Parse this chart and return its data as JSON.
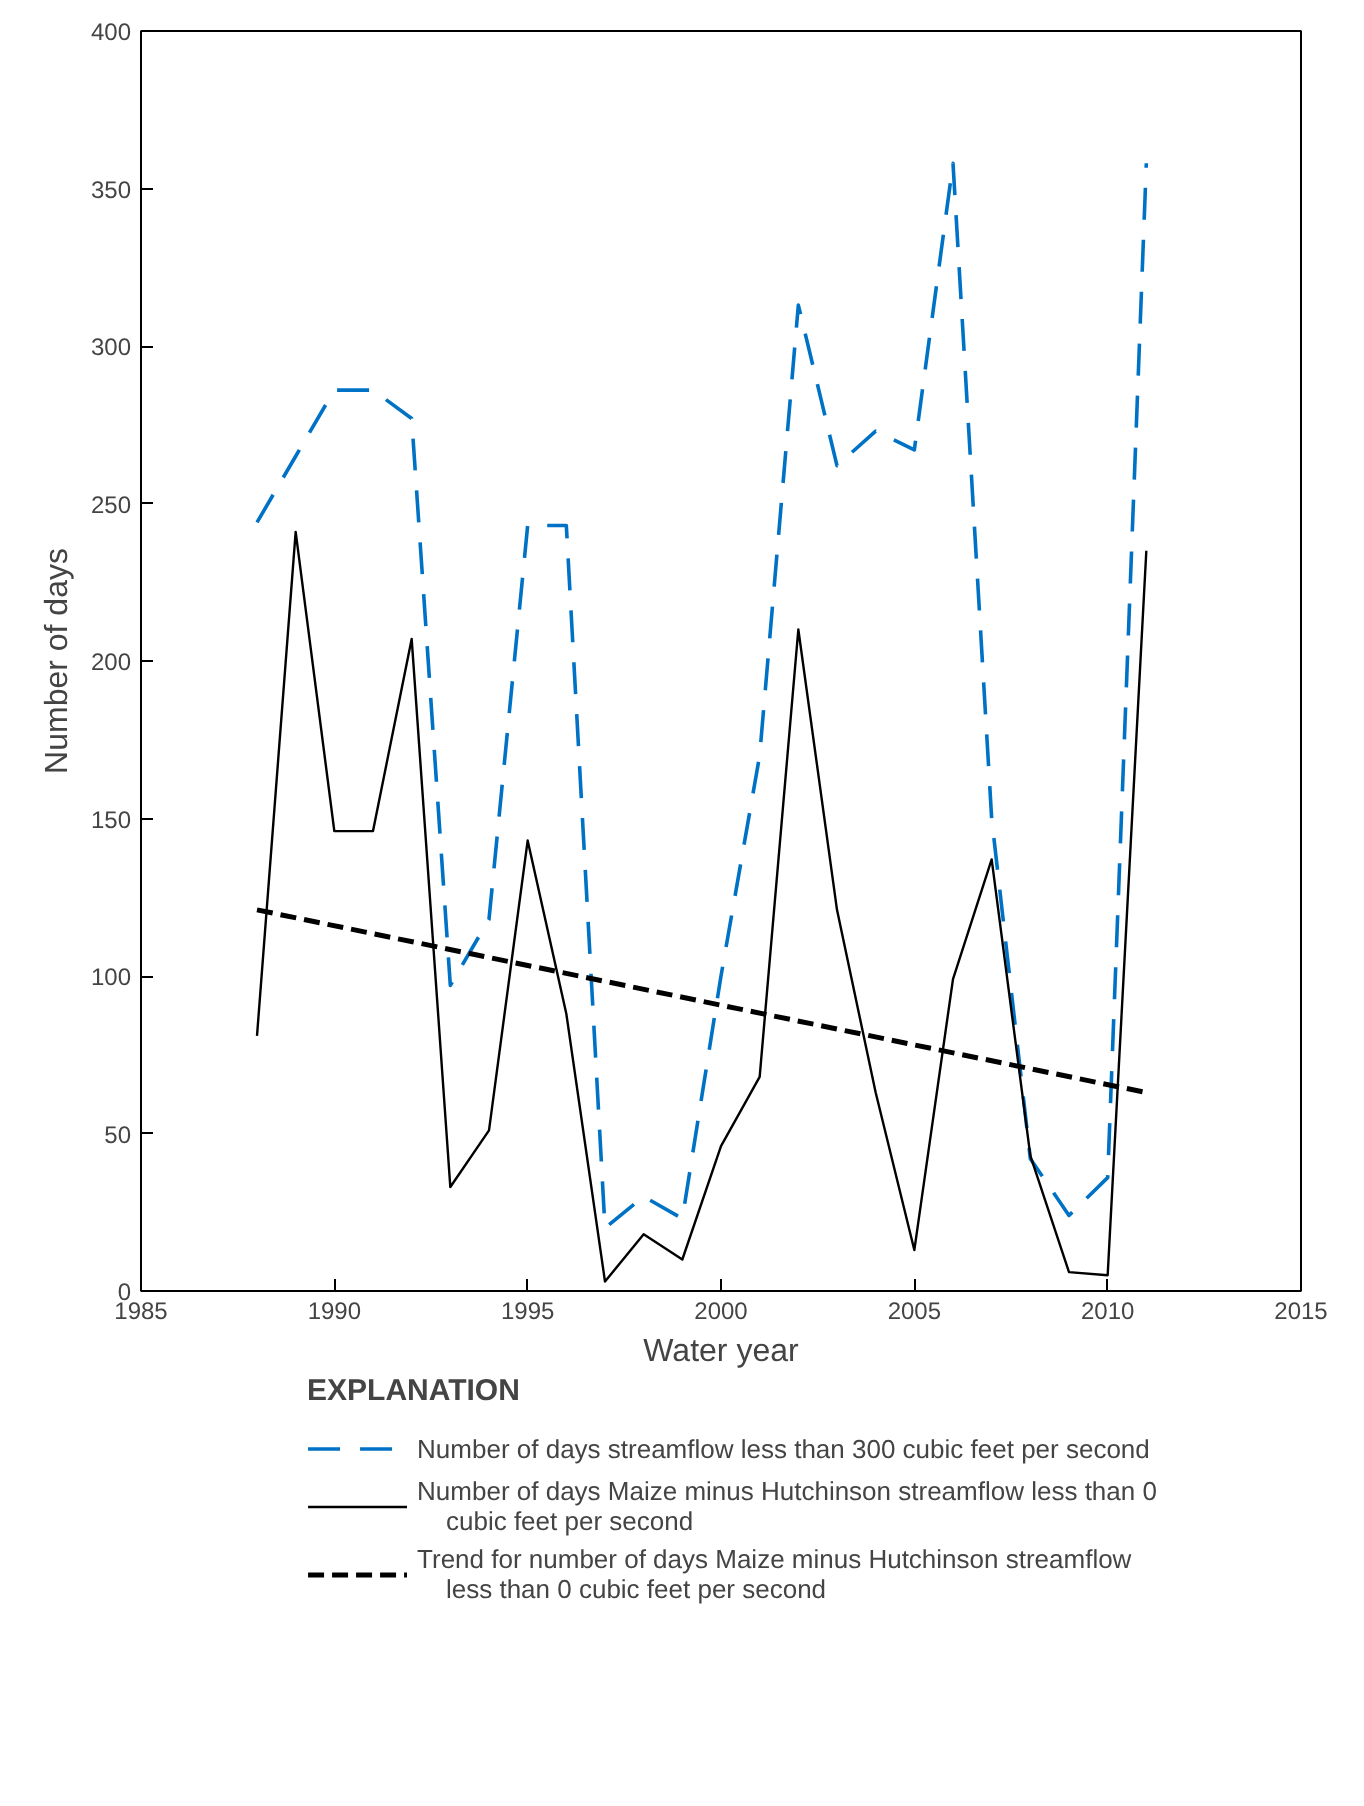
{
  "chart_data": {
    "type": "line",
    "xlabel": "Water year",
    "ylabel": "Number of days",
    "legend_title": "EXPLANATION",
    "xlim": [
      1985,
      2015
    ],
    "xticks": [
      1985,
      1990,
      1995,
      2000,
      2005,
      2010,
      2015
    ],
    "ylim": [
      0,
      400
    ],
    "yticks": [
      0,
      50,
      100,
      150,
      200,
      250,
      300,
      350,
      400
    ],
    "grid": false,
    "legend": "bottom",
    "x": [
      1988,
      1989,
      1990,
      1991,
      1992,
      1993,
      1994,
      1995,
      1996,
      1997,
      1998,
      1999,
      2000,
      2001,
      2002,
      2003,
      2004,
      2005,
      2006,
      2007,
      2008,
      2009,
      2010,
      2011
    ],
    "series": [
      {
        "name": "Number of days streamflow less than 300 cubic feet per second",
        "color": "#0072c6",
        "line_style": "dashed",
        "values": [
          244,
          265,
          286,
          286,
          277,
          97,
          118,
          243,
          243,
          20,
          30,
          23,
          100,
          170,
          313,
          262,
          273,
          267,
          358,
          150,
          42,
          24,
          36,
          358
        ]
      },
      {
        "name": "Number of days Maize minus Hutchinson streamflow less than 0 cubic feet per second",
        "color": "#000000",
        "line_style": "solid",
        "values": [
          81,
          241,
          146,
          146,
          207,
          33,
          51,
          143,
          88,
          3,
          18,
          10,
          46,
          68,
          210,
          121,
          63,
          13,
          99,
          137,
          43,
          6,
          5,
          235
        ]
      },
      {
        "name": "Trend for number of days Maize minus Hutchinson streamflow less than 0 cubic feet per second",
        "color": "#000000",
        "line_style": "dashed",
        "x": [
          1988,
          2011
        ],
        "values": [
          121,
          63
        ]
      }
    ]
  }
}
